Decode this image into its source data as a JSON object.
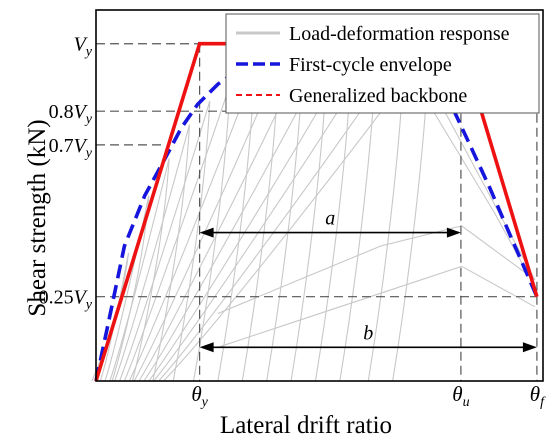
{
  "chart_data": {
    "type": "line",
    "title": "",
    "xlabel": "Lateral drift ratio",
    "ylabel": "Shear strength (kN)",
    "grid": false,
    "legend_position": "top-right",
    "xlim": [
      0,
      1.1
    ],
    "ylim": [
      0,
      1.1
    ],
    "x_ticks": [
      {
        "x": 0.255,
        "label_base": "θ",
        "label_sub": "y"
      },
      {
        "x": 0.898,
        "label_base": "θ",
        "label_sub": "u"
      },
      {
        "x": 1.085,
        "label_base": "θ",
        "label_sub": "f"
      }
    ],
    "y_ticks": [
      {
        "y": 1.0,
        "label_coef": "",
        "label_base": "V",
        "label_sub": "y"
      },
      {
        "y": 0.8,
        "label_coef": "0.8",
        "label_base": "V",
        "label_sub": "y"
      },
      {
        "y": 0.7,
        "label_coef": "0.7",
        "label_base": "V",
        "label_sub": "y"
      },
      {
        "y": 0.25,
        "label_coef": "0.25",
        "label_base": "V",
        "label_sub": "y"
      }
    ],
    "series": [
      {
        "name": "Load-deformation response",
        "color": "#c8c8c8",
        "style": "solid",
        "cycle_peaks": [
          {
            "x": 0.08,
            "y": 0.38
          },
          {
            "x": 0.13,
            "y": 0.55
          },
          {
            "x": 0.18,
            "y": 0.66
          },
          {
            "x": 0.23,
            "y": 0.76
          },
          {
            "x": 0.28,
            "y": 0.83
          },
          {
            "x": 0.33,
            "y": 0.88
          },
          {
            "x": 0.39,
            "y": 0.92
          },
          {
            "x": 0.45,
            "y": 0.94
          },
          {
            "x": 0.51,
            "y": 0.96
          },
          {
            "x": 0.57,
            "y": 0.97
          },
          {
            "x": 0.63,
            "y": 0.975
          },
          {
            "x": 0.69,
            "y": 0.98
          },
          {
            "x": 0.76,
            "y": 0.99
          },
          {
            "x": 0.82,
            "y": 0.99
          }
        ],
        "post_peak_branches": [
          {
            "x": [
              0.76,
              0.84,
              0.92,
              1.0,
              1.08
            ],
            "y": [
              0.99,
              0.84,
              0.66,
              0.48,
              0.3
            ]
          },
          {
            "x": [
              0.7,
              0.78,
              0.88,
              0.98,
              1.08
            ],
            "y": [
              0.98,
              0.9,
              0.7,
              0.5,
              0.28
            ]
          },
          {
            "x": [
              0.3,
              0.5,
              0.7,
              0.9,
              1.08
            ],
            "y": [
              0.2,
              0.3,
              0.4,
              0.46,
              0.3
            ]
          },
          {
            "x": [
              0.3,
              0.5,
              0.7,
              0.9,
              1.08
            ],
            "y": [
              0.1,
              0.18,
              0.26,
              0.34,
              0.22
            ]
          }
        ]
      },
      {
        "name": "First-cycle envelope",
        "color": "#1515dd",
        "style": "dashed",
        "x": [
          0,
          0.03,
          0.07,
          0.12,
          0.17,
          0.21,
          0.25,
          0.3,
          0.36,
          0.43,
          0.5,
          0.57,
          0.63,
          0.69,
          0.75,
          0.79,
          0.83,
          0.87,
          0.92,
          0.97,
          1.02,
          1.085
        ],
        "y": [
          0,
          0.17,
          0.4,
          0.55,
          0.66,
          0.75,
          0.82,
          0.88,
          0.93,
          0.95,
          0.97,
          0.98,
          0.98,
          0.985,
          0.99,
          1.0,
          0.93,
          0.83,
          0.7,
          0.57,
          0.43,
          0.25
        ]
      },
      {
        "name": "Generalized backbone",
        "color": "#ee1111",
        "style": "solid",
        "x": [
          0,
          0.255,
          0.898,
          1.085
        ],
        "y": [
          0,
          1.0,
          1.0,
          0.25
        ]
      }
    ],
    "annotations": [
      {
        "label": "a",
        "from_x": 0.255,
        "to_x": 0.898,
        "y": 0.44
      },
      {
        "label": "b",
        "from_x": 0.255,
        "to_x": 1.085,
        "y": 0.1
      }
    ],
    "reference_lines": {
      "horizontal_dashed_y": [
        1.0,
        0.8,
        0.7,
        0.25
      ],
      "vertical_dashed_x": [
        0.255,
        0.898,
        1.085
      ]
    }
  }
}
